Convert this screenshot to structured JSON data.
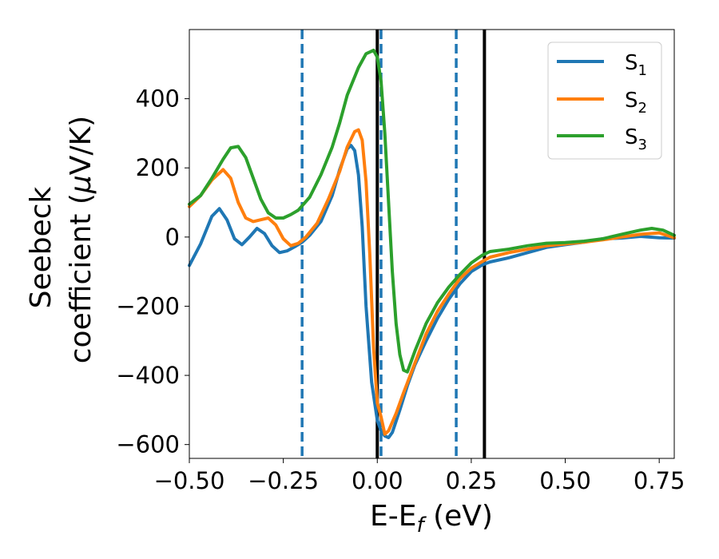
{
  "chart_data": {
    "type": "line",
    "xlabel": {
      "main": "E-E",
      "sub": "f",
      "unit": " (eV)"
    },
    "ylabel": {
      "line1": "Seebeck",
      "line2_pre": "coefficient  (",
      "mu": "μ",
      "line2_post": "V/K)"
    },
    "xlim": [
      -0.5,
      0.79
    ],
    "ylim": [
      -640,
      600
    ],
    "x_ticks": [
      -0.5,
      -0.25,
      0.0,
      0.25,
      0.5,
      0.75
    ],
    "x_tick_labels": [
      "−0.50",
      "−0.25",
      "0.00",
      "0.25",
      "0.50",
      "0.75"
    ],
    "y_ticks": [
      -600,
      -400,
      -200,
      0,
      200,
      400
    ],
    "y_tick_labels": [
      "−600",
      "−400",
      "−200",
      "0",
      "200",
      "400"
    ],
    "vertical_lines": [
      {
        "x": -0.2,
        "style": "dashed",
        "color": "#1f77b4"
      },
      {
        "x": 0.01,
        "style": "dashed",
        "color": "#1f77b4"
      },
      {
        "x": 0.21,
        "style": "dashed",
        "color": "#1f77b4"
      },
      {
        "x": 0.0,
        "style": "solid",
        "color": "#000000"
      },
      {
        "x": 0.285,
        "style": "solid",
        "color": "#000000"
      }
    ],
    "legend_position": "top-right",
    "series": [
      {
        "name_main": "S",
        "name_sub": "1",
        "color": "#1f77b4",
        "points": [
          [
            -0.5,
            -82
          ],
          [
            -0.47,
            -20
          ],
          [
            -0.44,
            60
          ],
          [
            -0.42,
            82
          ],
          [
            -0.4,
            50
          ],
          [
            -0.38,
            -5
          ],
          [
            -0.36,
            -22
          ],
          [
            -0.34,
            0
          ],
          [
            -0.32,
            25
          ],
          [
            -0.3,
            10
          ],
          [
            -0.28,
            -25
          ],
          [
            -0.26,
            -45
          ],
          [
            -0.24,
            -40
          ],
          [
            -0.22,
            -28
          ],
          [
            -0.2,
            -15
          ],
          [
            -0.18,
            5
          ],
          [
            -0.15,
            45
          ],
          [
            -0.12,
            120
          ],
          [
            -0.1,
            195
          ],
          [
            -0.08,
            255
          ],
          [
            -0.07,
            265
          ],
          [
            -0.06,
            250
          ],
          [
            -0.05,
            180
          ],
          [
            -0.04,
            30
          ],
          [
            -0.03,
            -200
          ],
          [
            -0.015,
            -420
          ],
          [
            0.0,
            -530
          ],
          [
            0.01,
            -560
          ],
          [
            0.02,
            -575
          ],
          [
            0.03,
            -580
          ],
          [
            0.04,
            -565
          ],
          [
            0.06,
            -500
          ],
          [
            0.08,
            -430
          ],
          [
            0.1,
            -370
          ],
          [
            0.13,
            -300
          ],
          [
            0.16,
            -235
          ],
          [
            0.19,
            -180
          ],
          [
            0.22,
            -135
          ],
          [
            0.25,
            -100
          ],
          [
            0.28,
            -80
          ],
          [
            0.3,
            -72
          ],
          [
            0.35,
            -60
          ],
          [
            0.4,
            -45
          ],
          [
            0.45,
            -30
          ],
          [
            0.5,
            -22
          ],
          [
            0.55,
            -15
          ],
          [
            0.6,
            -5
          ],
          [
            0.65,
            -3
          ],
          [
            0.7,
            2
          ],
          [
            0.75,
            -2
          ],
          [
            0.79,
            -3
          ]
        ]
      },
      {
        "name_main": "S",
        "name_sub": "2",
        "color": "#ff7f0e",
        "points": [
          [
            -0.5,
            88
          ],
          [
            -0.47,
            120
          ],
          [
            -0.44,
            165
          ],
          [
            -0.41,
            195
          ],
          [
            -0.39,
            170
          ],
          [
            -0.37,
            100
          ],
          [
            -0.35,
            55
          ],
          [
            -0.33,
            45
          ],
          [
            -0.31,
            50
          ],
          [
            -0.29,
            55
          ],
          [
            -0.27,
            35
          ],
          [
            -0.25,
            -5
          ],
          [
            -0.23,
            -25
          ],
          [
            -0.21,
            -18
          ],
          [
            -0.19,
            0
          ],
          [
            -0.16,
            40
          ],
          [
            -0.13,
            110
          ],
          [
            -0.1,
            190
          ],
          [
            -0.08,
            260
          ],
          [
            -0.06,
            305
          ],
          [
            -0.05,
            310
          ],
          [
            -0.04,
            280
          ],
          [
            -0.03,
            160
          ],
          [
            -0.02,
            -50
          ],
          [
            -0.01,
            -320
          ],
          [
            0.0,
            -480
          ],
          [
            0.01,
            -520
          ],
          [
            0.02,
            -570
          ],
          [
            0.03,
            -560
          ],
          [
            0.05,
            -510
          ],
          [
            0.07,
            -450
          ],
          [
            0.1,
            -365
          ],
          [
            0.13,
            -280
          ],
          [
            0.16,
            -215
          ],
          [
            0.19,
            -165
          ],
          [
            0.22,
            -120
          ],
          [
            0.25,
            -90
          ],
          [
            0.28,
            -70
          ],
          [
            0.3,
            -58
          ],
          [
            0.35,
            -45
          ],
          [
            0.4,
            -35
          ],
          [
            0.45,
            -25
          ],
          [
            0.5,
            -20
          ],
          [
            0.55,
            -15
          ],
          [
            0.6,
            -8
          ],
          [
            0.65,
            0
          ],
          [
            0.7,
            8
          ],
          [
            0.75,
            12
          ],
          [
            0.79,
            -2
          ]
        ]
      },
      {
        "name_main": "S",
        "name_sub": "3",
        "color": "#2ca02c",
        "points": [
          [
            -0.5,
            95
          ],
          [
            -0.47,
            120
          ],
          [
            -0.44,
            170
          ],
          [
            -0.41,
            225
          ],
          [
            -0.39,
            258
          ],
          [
            -0.37,
            262
          ],
          [
            -0.35,
            230
          ],
          [
            -0.33,
            170
          ],
          [
            -0.31,
            110
          ],
          [
            -0.29,
            70
          ],
          [
            -0.27,
            55
          ],
          [
            -0.25,
            55
          ],
          [
            -0.23,
            65
          ],
          [
            -0.21,
            78
          ],
          [
            -0.18,
            115
          ],
          [
            -0.15,
            180
          ],
          [
            -0.12,
            260
          ],
          [
            -0.1,
            330
          ],
          [
            -0.08,
            410
          ],
          [
            -0.05,
            490
          ],
          [
            -0.03,
            530
          ],
          [
            -0.01,
            540
          ],
          [
            0.0,
            520
          ],
          [
            0.01,
            450
          ],
          [
            0.02,
            300
          ],
          [
            0.03,
            100
          ],
          [
            0.04,
            -100
          ],
          [
            0.05,
            -250
          ],
          [
            0.06,
            -340
          ],
          [
            0.07,
            -385
          ],
          [
            0.08,
            -390
          ],
          [
            0.1,
            -330
          ],
          [
            0.13,
            -250
          ],
          [
            0.16,
            -190
          ],
          [
            0.19,
            -145
          ],
          [
            0.22,
            -108
          ],
          [
            0.25,
            -75
          ],
          [
            0.28,
            -52
          ],
          [
            0.3,
            -42
          ],
          [
            0.35,
            -35
          ],
          [
            0.4,
            -25
          ],
          [
            0.45,
            -18
          ],
          [
            0.5,
            -16
          ],
          [
            0.55,
            -12
          ],
          [
            0.6,
            -5
          ],
          [
            0.65,
            8
          ],
          [
            0.7,
            20
          ],
          [
            0.73,
            25
          ],
          [
            0.76,
            20
          ],
          [
            0.79,
            5
          ]
        ]
      }
    ]
  }
}
